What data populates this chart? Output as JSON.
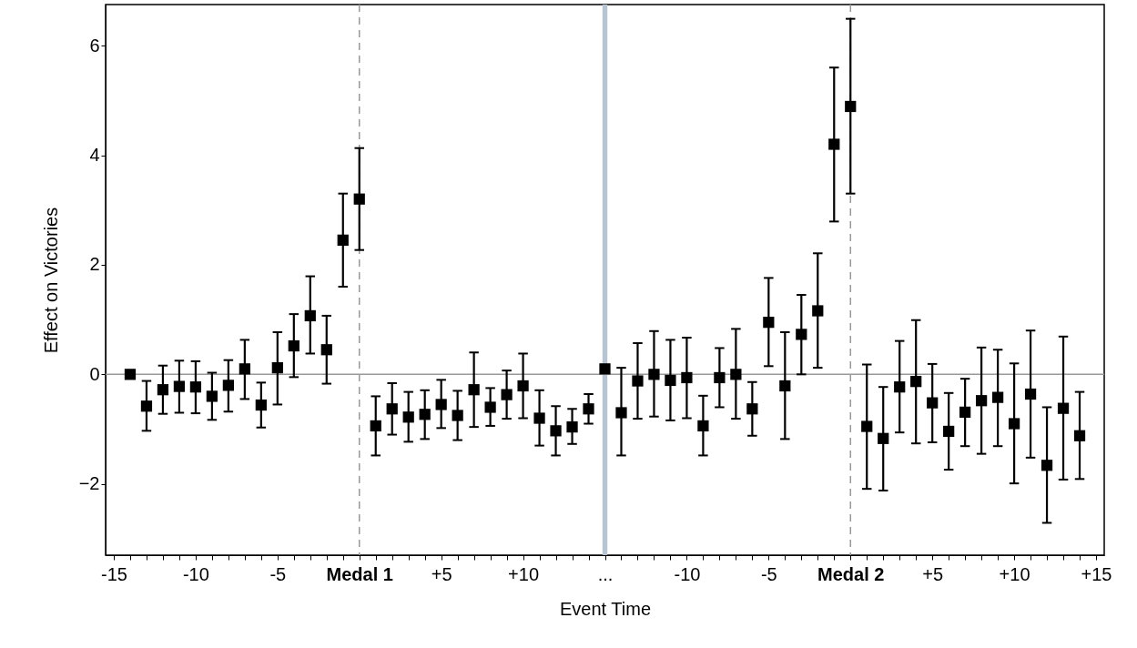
{
  "chart_data": {
    "type": "scatter",
    "xlabel": "Event Time",
    "ylabel": "Effect on Victories",
    "marker": "square",
    "grid": false,
    "categories": [
      "-15",
      null,
      null,
      null,
      null,
      "-10",
      null,
      null,
      null,
      null,
      "-5",
      null,
      null,
      null,
      null,
      "Medal 1",
      null,
      null,
      null,
      null,
      "+5",
      null,
      null,
      null,
      null,
      "+10",
      null,
      null,
      null,
      null,
      "...",
      null,
      null,
      null,
      null,
      "-10",
      null,
      null,
      null,
      null,
      "-5",
      null,
      null,
      null,
      null,
      "Medal 2",
      null,
      null,
      null,
      null,
      "+5",
      null,
      null,
      null,
      null,
      "+10",
      null,
      null,
      null,
      null,
      "+15"
    ],
    "series": [
      {
        "color": "#000000",
        "values": [
          null,
          0,
          -0.58,
          -0.28,
          -0.22,
          -0.23,
          -0.4,
          -0.2,
          0.1,
          -0.56,
          0.12,
          0.52,
          1.07,
          0.45,
          2.45,
          3.2,
          -0.94,
          -0.63,
          -0.78,
          -0.73,
          -0.55,
          -0.75,
          -0.28,
          -0.6,
          -0.37,
          -0.21,
          -0.8,
          -1.03,
          -0.96,
          -0.63,
          0.1,
          -0.7,
          -0.12,
          0.0,
          -0.11,
          -0.06,
          -0.94,
          -0.06,
          0.0,
          -0.63,
          0.95,
          -0.21,
          0.73,
          1.16,
          4.2,
          4.89,
          -0.95,
          -1.17,
          -0.23,
          -0.13,
          -0.52,
          -1.04,
          -0.69,
          -0.48,
          -0.42,
          -0.9,
          -0.36,
          -1.66,
          -0.62,
          -1.12,
          null
        ],
        "errors": [
          null,
          null,
          [
            -1.03,
            -0.12
          ],
          [
            -0.72,
            0.16
          ],
          [
            -0.7,
            0.25
          ],
          [
            -0.71,
            0.24
          ],
          [
            -0.83,
            0.03
          ],
          [
            -0.68,
            0.26
          ],
          [
            -0.45,
            0.63
          ],
          [
            -0.97,
            -0.15
          ],
          [
            -0.55,
            0.77
          ],
          [
            -0.05,
            1.1
          ],
          [
            0.38,
            1.79
          ],
          [
            -0.17,
            1.07
          ],
          [
            1.6,
            3.3
          ],
          [
            2.27,
            4.13
          ],
          [
            -1.48,
            -0.4
          ],
          [
            -1.1,
            -0.16
          ],
          [
            -1.23,
            -0.32
          ],
          [
            -1.18,
            -0.29
          ],
          [
            -0.98,
            -0.1
          ],
          [
            -1.2,
            -0.3
          ],
          [
            -0.96,
            0.4
          ],
          [
            -0.94,
            -0.25
          ],
          [
            -0.81,
            0.07
          ],
          [
            -0.8,
            0.38
          ],
          [
            -1.3,
            -0.29
          ],
          [
            -1.48,
            -0.58
          ],
          [
            -1.27,
            -0.63
          ],
          [
            -0.9,
            -0.36
          ],
          null,
          [
            -1.48,
            0.12
          ],
          [
            -0.81,
            0.57
          ],
          [
            -0.77,
            0.79
          ],
          [
            -0.84,
            0.63
          ],
          [
            -0.8,
            0.67
          ],
          [
            -1.48,
            -0.39
          ],
          [
            -0.6,
            0.48
          ],
          [
            -0.81,
            0.83
          ],
          [
            -1.12,
            -0.14
          ],
          [
            0.15,
            1.76
          ],
          [
            -1.18,
            0.77
          ],
          [
            0.0,
            1.45
          ],
          [
            0.12,
            2.21
          ],
          [
            2.79,
            5.6
          ],
          [
            3.3,
            6.49
          ],
          [
            -2.09,
            0.18
          ],
          [
            -2.12,
            -0.23
          ],
          [
            -1.06,
            0.61
          ],
          [
            -1.26,
            0.99
          ],
          [
            -1.24,
            0.19
          ],
          [
            -1.74,
            -0.34
          ],
          [
            -1.31,
            -0.08
          ],
          [
            -1.45,
            0.49
          ],
          [
            -1.31,
            0.45
          ],
          [
            -1.99,
            0.2
          ],
          [
            -1.52,
            0.8
          ],
          [
            -2.71,
            -0.6
          ],
          [
            -1.92,
            0.69
          ],
          [
            -1.91,
            -0.32
          ],
          null
        ]
      }
    ],
    "ylim": [
      -3.3,
      6.75
    ],
    "yticks": [
      -2,
      0,
      2,
      4,
      6
    ],
    "ref_lines": [
      {
        "axis": "x",
        "value": "Medal 1",
        "color": "#999999",
        "line_style": "dashed"
      },
      {
        "axis": "x",
        "value": "Medal 2",
        "color": "#999999",
        "line_style": "dashed"
      },
      {
        "axis": "y",
        "value": 0,
        "color": "#999999",
        "line_style": "solid"
      }
    ],
    "bands": [
      {
        "axis": "x",
        "from": "...",
        "to": "...",
        "color": "#b8c4d2"
      }
    ]
  }
}
